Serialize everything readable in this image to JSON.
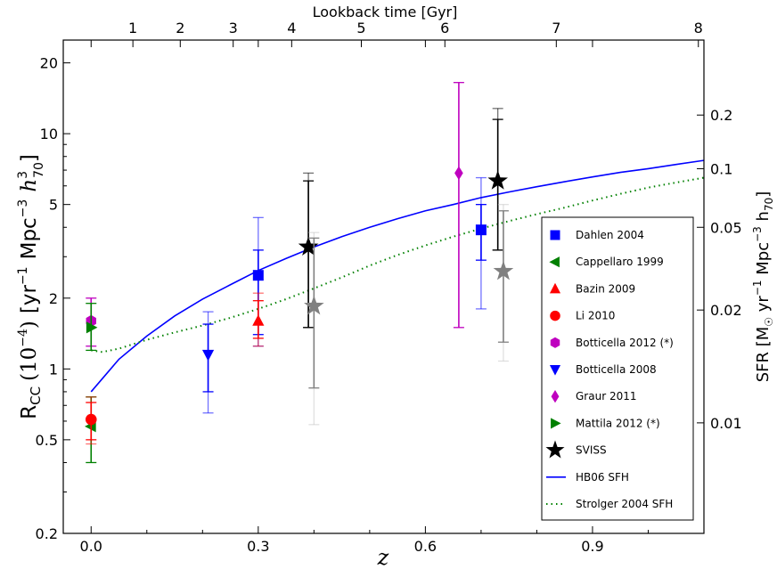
{
  "chart_data": {
    "type": "scatter",
    "xlabel": "z",
    "ylabel": "R_CC (10^-4) [yr^-1 Mpc^-3 h_70^3]",
    "ylabel_parts": {
      "base": "R",
      "sub": "CC",
      "pow": "(10",
      "pow_exp": "−4",
      "pow_close": ")",
      "unit1": "[yr",
      "unit1_exp": "−1",
      "unit2": "Mpc",
      "unit2_exp": "−3",
      "h": "h",
      "h_exp": "3",
      "h_sub": "70",
      "close": "]"
    },
    "ylabel_right": "SFR [M☉ yr−1 Mpc−3 h70]",
    "ylabel_right_parts": {
      "a": "SFR [M",
      "sun": "☉",
      "b": " yr",
      "b_exp": "−1",
      "c": " Mpc",
      "c_exp": "−3",
      "d": " h",
      "d_sub": "70",
      "e": "]"
    },
    "xlabel_top": "Lookback time [Gyr]",
    "xlim": [
      -0.05,
      1.1
    ],
    "ylim": [
      0.2,
      25
    ],
    "yscale": "log",
    "x_ticks": [
      0.0,
      0.3,
      0.6,
      0.9
    ],
    "x_tick_labels": [
      "0.0",
      "0.3",
      "0.6",
      "0.9"
    ],
    "y_ticks": [
      0.2,
      0.5,
      1,
      2,
      5,
      10,
      20
    ],
    "y_tick_labels": [
      "0.2",
      "0.5",
      "1",
      "2",
      "5",
      "10",
      "20"
    ],
    "top_ticks_z": [
      0.075,
      0.16,
      0.255,
      0.36,
      0.485,
      0.635,
      0.835,
      1.09
    ],
    "top_tick_labels": [
      "1",
      "2",
      "3",
      "4",
      "5",
      "6",
      "7",
      "8"
    ],
    "right_ticks_y": [
      0.59,
      1.78,
      4.0,
      7.1,
      12.0
    ],
    "right_tick_labels": [
      "0.01",
      "0.02",
      "0.05",
      "0.1",
      "0.2"
    ],
    "series": [
      {
        "name": "Dahlen 2004",
        "marker": "square",
        "color": "#0000ff",
        "points": [
          {
            "x": 0.3,
            "y": 2.5,
            "lo": 1.4,
            "hi": 3.2,
            "lo2": 1.25,
            "hi2": 4.4
          },
          {
            "x": 0.7,
            "y": 3.9,
            "lo": 2.9,
            "hi": 5.0,
            "lo2": 1.8,
            "hi2": 6.5
          }
        ]
      },
      {
        "name": "Cappellaro 1999",
        "marker": "triangle-left",
        "color": "#008000",
        "points": [
          {
            "x": 0.0,
            "y": 0.57,
            "lo": 0.4,
            "hi": 0.76
          }
        ]
      },
      {
        "name": "Bazin 2009",
        "marker": "triangle-up",
        "color": "#ff0000",
        "points": [
          {
            "x": 0.3,
            "y": 1.6,
            "lo": 1.35,
            "hi": 1.95,
            "lo2": 1.25,
            "hi2": 2.1
          }
        ]
      },
      {
        "name": "Li 2010",
        "marker": "circle",
        "color": "#ff0000",
        "points": [
          {
            "x": 0.0,
            "y": 0.61,
            "lo": 0.5,
            "hi": 0.72,
            "lo2": 0.48,
            "hi2": 0.76
          }
        ]
      },
      {
        "name": "Botticella 2012 (*)",
        "marker": "hexagon",
        "color": "#bf00bf",
        "points": [
          {
            "x": 0.0,
            "y": 1.6,
            "lo": 1.25,
            "hi": 2.0
          }
        ]
      },
      {
        "name": "Botticella 2008",
        "marker": "triangle-down",
        "color": "#0000ff",
        "points": [
          {
            "x": 0.21,
            "y": 1.15,
            "lo": 0.8,
            "hi": 1.55,
            "lo2": 0.65,
            "hi2": 1.75
          }
        ]
      },
      {
        "name": "Graur 2011",
        "marker": "diamond",
        "color": "#bf00bf",
        "points": [
          {
            "x": 0.66,
            "y": 6.8,
            "lo": 1.5,
            "hi": 16.5
          }
        ]
      },
      {
        "name": "Mattila 2012 (*)",
        "marker": "triangle-right",
        "color": "#008000",
        "points": [
          {
            "x": 0.0,
            "y": 1.5,
            "lo": 1.2,
            "hi": 1.9
          }
        ]
      },
      {
        "name": "SVISS",
        "marker": "star",
        "color": "#000000",
        "points": [
          {
            "x": 0.39,
            "y": 3.3,
            "lo": 1.5,
            "hi": 6.3,
            "lo2": 1.5,
            "hi2": 6.8
          },
          {
            "x": 0.73,
            "y": 6.3,
            "lo": 3.2,
            "hi": 11.5,
            "lo2": 3.2,
            "hi2": 12.8
          }
        ]
      },
      {
        "name": "SVISS (gray)",
        "marker": "star",
        "color": "#808080",
        "legend": false,
        "points": [
          {
            "x": 0.4,
            "y": 1.85,
            "lo": 0.83,
            "hi": 3.6,
            "lo2": 0.58,
            "hi2": 3.8
          },
          {
            "x": 0.74,
            "y": 2.6,
            "lo": 1.3,
            "hi": 4.7,
            "lo2": 1.08,
            "hi2": 5.0
          }
        ]
      }
    ],
    "lines": [
      {
        "name": "HB06 SFH",
        "style": "solid",
        "color": "#0000ff",
        "x": [
          0.0,
          0.05,
          0.1,
          0.15,
          0.2,
          0.25,
          0.3,
          0.35,
          0.4,
          0.45,
          0.5,
          0.55,
          0.6,
          0.65,
          0.7,
          0.75,
          0.8,
          0.85,
          0.9,
          0.95,
          1.0,
          1.05,
          1.1
        ],
        "y": [
          0.8,
          1.1,
          1.38,
          1.68,
          1.98,
          2.28,
          2.62,
          2.95,
          3.3,
          3.65,
          4.0,
          4.35,
          4.7,
          5.0,
          5.35,
          5.65,
          5.95,
          6.25,
          6.55,
          6.85,
          7.1,
          7.4,
          7.7
        ]
      },
      {
        "name": "Strolger 2004 SFH",
        "style": "dotted",
        "color": "#008000",
        "x": [
          0.0,
          0.02,
          0.05,
          0.1,
          0.15,
          0.2,
          0.25,
          0.3,
          0.35,
          0.4,
          0.45,
          0.5,
          0.55,
          0.6,
          0.65,
          0.7,
          0.75,
          0.8,
          0.85,
          0.9,
          0.95,
          1.0,
          1.05,
          1.1
        ],
        "y": [
          1.2,
          1.18,
          1.22,
          1.33,
          1.43,
          1.53,
          1.65,
          1.8,
          1.98,
          2.2,
          2.45,
          2.75,
          3.05,
          3.35,
          3.65,
          3.95,
          4.25,
          4.55,
          4.85,
          5.2,
          5.55,
          5.9,
          6.2,
          6.5
        ]
      }
    ],
    "legend": {
      "placement": "lower-right",
      "entries": [
        "Dahlen 2004",
        "Cappellaro 1999",
        "Bazin 2009",
        "Li 2010",
        "Botticella 2012 (*)",
        "Botticella 2008",
        "Graur 2011",
        "Mattila 2012 (*)",
        "SVISS",
        "HB06 SFH",
        "Strolger 2004 SFH"
      ]
    }
  }
}
